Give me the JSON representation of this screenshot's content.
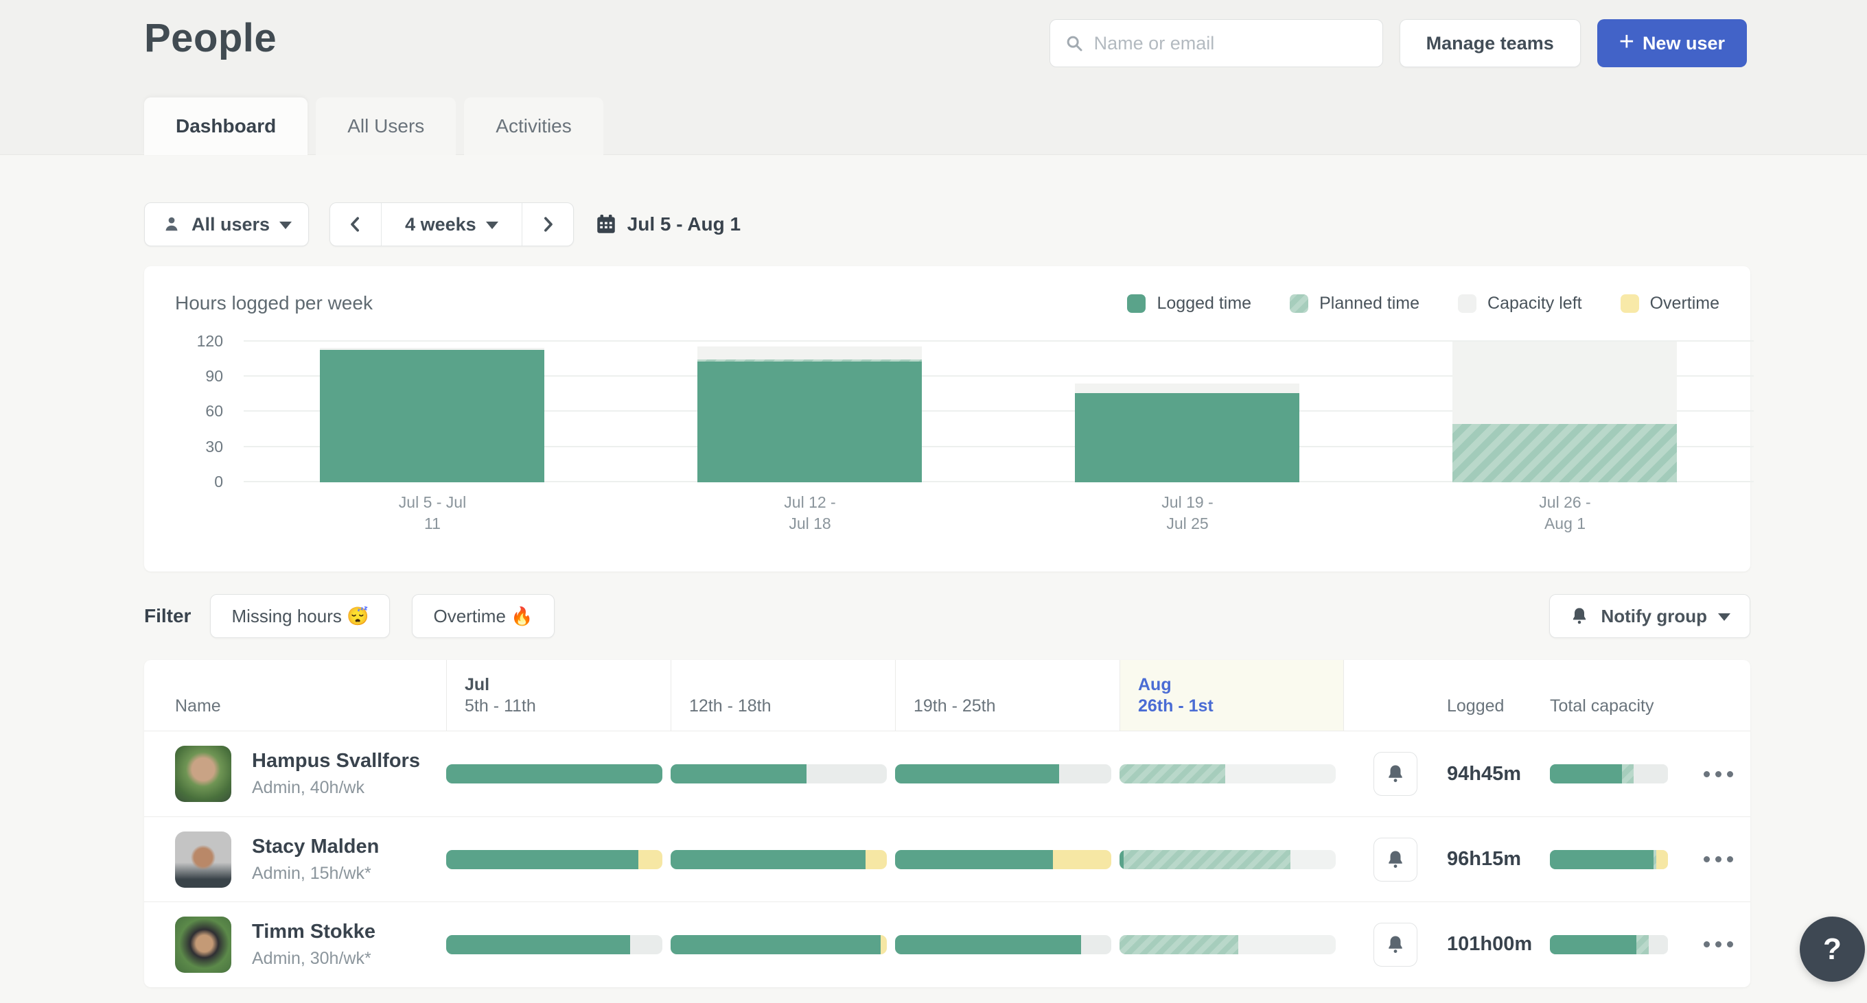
{
  "page": {
    "title": "People"
  },
  "tabs": [
    {
      "label": "Dashboard",
      "active": true
    },
    {
      "label": "All Users",
      "active": false
    },
    {
      "label": "Activities",
      "active": false
    }
  ],
  "header": {
    "search": {
      "placeholder": "Name or email"
    },
    "manage_teams_label": "Manage teams",
    "new_user_plus": "+",
    "new_user_label": "New user"
  },
  "toolbar": {
    "user_filter_label": "All users",
    "period_label": "4 weeks",
    "date_range": "Jul 5 - Aug 1"
  },
  "chart_card": {
    "title": "Hours logged per week",
    "legend": [
      {
        "key": "logged",
        "label": "Logged time"
      },
      {
        "key": "planned",
        "label": "Planned time"
      },
      {
        "key": "capacity",
        "label": "Capacity left"
      },
      {
        "key": "overtime",
        "label": "Overtime"
      }
    ]
  },
  "chart_data": {
    "type": "bar",
    "stacked": true,
    "title": "Hours logged per week",
    "categories": [
      "Jul 5 - Jul 11",
      "Jul 12 - Jul 18",
      "Jul 19 - Jul 25",
      "Jul 26 - Aug 1"
    ],
    "categories_lines": [
      [
        "Jul 5 - Jul",
        "11"
      ],
      [
        "Jul 12 -",
        "Jul 18"
      ],
      [
        "Jul 19 -",
        "Jul 25"
      ],
      [
        "Jul 26 -",
        "Aug 1"
      ]
    ],
    "series": [
      {
        "name": "Logged time",
        "key": "logged",
        "values": [
          113,
          103,
          76,
          0
        ]
      },
      {
        "name": "Planned time",
        "key": "planned",
        "values": [
          0,
          2,
          0,
          50
        ]
      },
      {
        "name": "Capacity left",
        "key": "capacity",
        "values": [
          2,
          11,
          8,
          70
        ]
      },
      {
        "name": "Overtime",
        "key": "overtime",
        "values": [
          0,
          0,
          0,
          0
        ]
      }
    ],
    "xlabel": "",
    "ylabel": "",
    "yticks": [
      0,
      30,
      60,
      90,
      120
    ],
    "ylim": [
      0,
      120
    ],
    "grid": true,
    "legend_position": "top-right"
  },
  "filters": {
    "label": "Filter",
    "chips": [
      {
        "label": "Missing hours 😴"
      },
      {
        "label": "Overtime 🔥"
      }
    ],
    "notify_label": "Notify group"
  },
  "table": {
    "columns": {
      "name": "Name",
      "weeks": [
        {
          "month": "Jul",
          "range": "5th - 11th",
          "highlight": false
        },
        {
          "month": "",
          "range": "12th - 18th",
          "highlight": false
        },
        {
          "month": "",
          "range": "19th - 25th",
          "highlight": false
        },
        {
          "month": "Aug",
          "range": "26th - 1st",
          "highlight": true
        }
      ],
      "logged": "Logged",
      "capacity": "Total capacity"
    },
    "rows": [
      {
        "name": "Hampus Svallfors",
        "meta": "Admin, 40h/wk",
        "logged": "94h45m",
        "weeks": [
          [
            {
              "t": "logged",
              "pct": 100
            }
          ],
          [
            {
              "t": "logged",
              "pct": 63
            },
            {
              "t": "capacity",
              "pct": 37
            }
          ],
          [
            {
              "t": "logged",
              "pct": 76
            },
            {
              "t": "capacity",
              "pct": 24
            }
          ],
          [
            {
              "t": "planned",
              "pct": 49
            },
            {
              "t": "future",
              "pct": 51
            }
          ]
        ],
        "capacity_bar": [
          {
            "t": "logged",
            "pct": 61
          },
          {
            "t": "planned",
            "pct": 10
          },
          {
            "t": "capacity",
            "pct": 29
          }
        ]
      },
      {
        "name": "Stacy Malden",
        "meta": "Admin, 15h/wk*",
        "logged": "96h15m",
        "weeks": [
          [
            {
              "t": "logged",
              "pct": 89
            },
            {
              "t": "overtime",
              "pct": 11
            }
          ],
          [
            {
              "t": "logged",
              "pct": 90
            },
            {
              "t": "overtime",
              "pct": 10
            }
          ],
          [
            {
              "t": "logged",
              "pct": 73
            },
            {
              "t": "overtime",
              "pct": 27
            }
          ],
          [
            {
              "t": "logged",
              "pct": 2
            },
            {
              "t": "planned",
              "pct": 77
            },
            {
              "t": "future",
              "pct": 21
            }
          ]
        ],
        "capacity_bar": [
          {
            "t": "logged",
            "pct": 88
          },
          {
            "t": "planned",
            "pct": 2
          },
          {
            "t": "overtime",
            "pct": 10
          }
        ]
      },
      {
        "name": "Timm Stokke",
        "meta": "Admin, 30h/wk*",
        "logged": "101h00m",
        "weeks": [
          [
            {
              "t": "logged",
              "pct": 85
            },
            {
              "t": "capacity",
              "pct": 15
            }
          ],
          [
            {
              "t": "logged",
              "pct": 97
            },
            {
              "t": "overtime",
              "pct": 3
            }
          ],
          [
            {
              "t": "logged",
              "pct": 86
            },
            {
              "t": "capacity",
              "pct": 14
            }
          ],
          [
            {
              "t": "planned",
              "pct": 55
            },
            {
              "t": "future",
              "pct": 45
            }
          ]
        ],
        "capacity_bar": [
          {
            "t": "logged",
            "pct": 73
          },
          {
            "t": "planned",
            "pct": 11
          },
          {
            "t": "capacity",
            "pct": 16
          }
        ]
      }
    ]
  },
  "help": {
    "label": "?"
  },
  "colors": {
    "logged_green": "#5aa38a",
    "planned_stripe": "#aed2c1",
    "capacity_gray": "#e9eceb",
    "overtime_yellow": "#f6e7a4",
    "accent_blue": "#4263c8",
    "current_week_blue": "#4a6cd4",
    "current_week_bg": "#fafaef",
    "text_dark": "#39434d",
    "text_gray": "#6a737b"
  }
}
